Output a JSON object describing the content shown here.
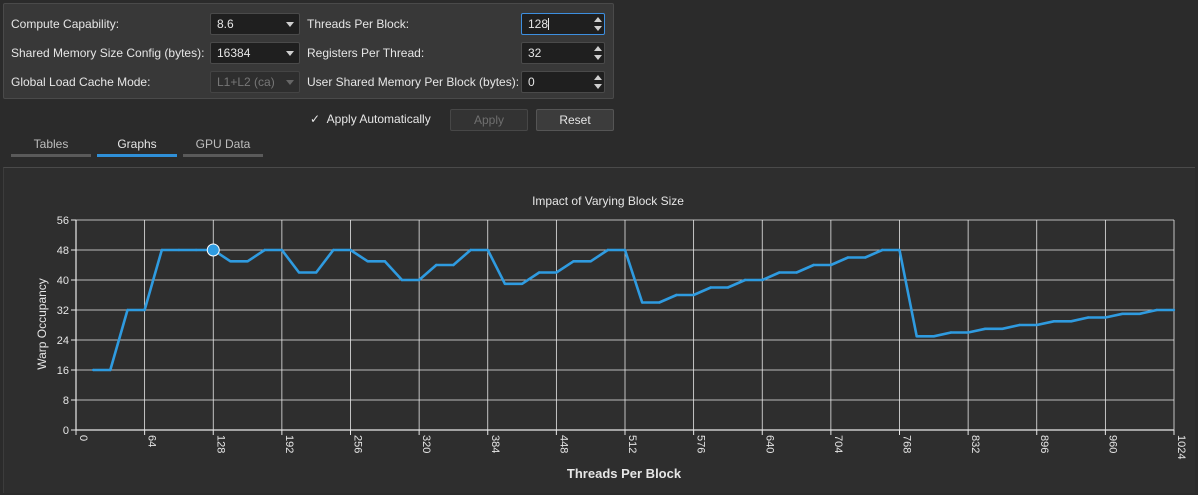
{
  "config": {
    "compute_capability_label": "Compute Capability:",
    "compute_capability_value": "8.6",
    "shared_mem_label": "Shared Memory Size Config (bytes):",
    "shared_mem_value": "16384",
    "global_cache_label": "Global Load Cache Mode:",
    "global_cache_value": "L1+L2 (ca)",
    "threads_label": "Threads Per Block:",
    "threads_value": "128",
    "registers_label": "Registers Per Thread:",
    "registers_value": "32",
    "user_smem_label": "User Shared Memory Per Block (bytes):",
    "user_smem_value": "0"
  },
  "actions": {
    "apply_auto_check": "✓",
    "apply_auto_label": "Apply Automatically",
    "apply_label": "Apply",
    "reset_label": "Reset"
  },
  "tabs": [
    {
      "label": "Tables"
    },
    {
      "label": "Graphs"
    },
    {
      "label": "GPU Data"
    }
  ],
  "colors": {
    "line": "#2f9be0",
    "grid": "#e8e8e8",
    "highlight_fill": "#2f9be0"
  },
  "chart_data": {
    "type": "line",
    "title": "Impact of Varying Block Size",
    "xlabel": "Threads Per Block",
    "ylabel": "Warp Occupancy",
    "xlim": [
      0,
      1024
    ],
    "ylim": [
      0,
      56
    ],
    "xticks": [
      0,
      64,
      128,
      192,
      256,
      320,
      384,
      448,
      512,
      576,
      640,
      704,
      768,
      832,
      896,
      960,
      1024
    ],
    "yticks": [
      0,
      8,
      16,
      24,
      32,
      40,
      48,
      56
    ],
    "grid": true,
    "series": [
      {
        "x": [
          16,
          32,
          48,
          64,
          80,
          96,
          112,
          128,
          144,
          160,
          176,
          192,
          208,
          224,
          240,
          256,
          272,
          288,
          304,
          320,
          336,
          352,
          368,
          384,
          400,
          416,
          432,
          448,
          464,
          480,
          496,
          512,
          528,
          544,
          560,
          576,
          592,
          608,
          624,
          640,
          656,
          672,
          688,
          704,
          720,
          736,
          752,
          768,
          784,
          800,
          816,
          832,
          848,
          864,
          880,
          896,
          912,
          928,
          944,
          960,
          976,
          992,
          1008,
          1024
        ],
        "y": [
          16,
          16,
          32,
          32,
          48,
          48,
          48,
          48,
          45,
          45,
          48,
          48,
          42,
          42,
          48,
          48,
          45,
          45,
          40,
          40,
          44,
          44,
          48,
          48,
          39,
          39,
          42,
          42,
          45,
          45,
          48,
          48,
          34,
          34,
          36,
          36,
          38,
          38,
          40,
          40,
          42,
          42,
          44,
          44,
          46,
          46,
          48,
          48,
          25,
          25,
          26,
          26,
          27,
          27,
          28,
          28,
          29,
          29,
          30,
          30,
          31,
          31,
          32,
          32
        ]
      }
    ],
    "highlight": {
      "x": 128,
      "y": 48
    }
  }
}
